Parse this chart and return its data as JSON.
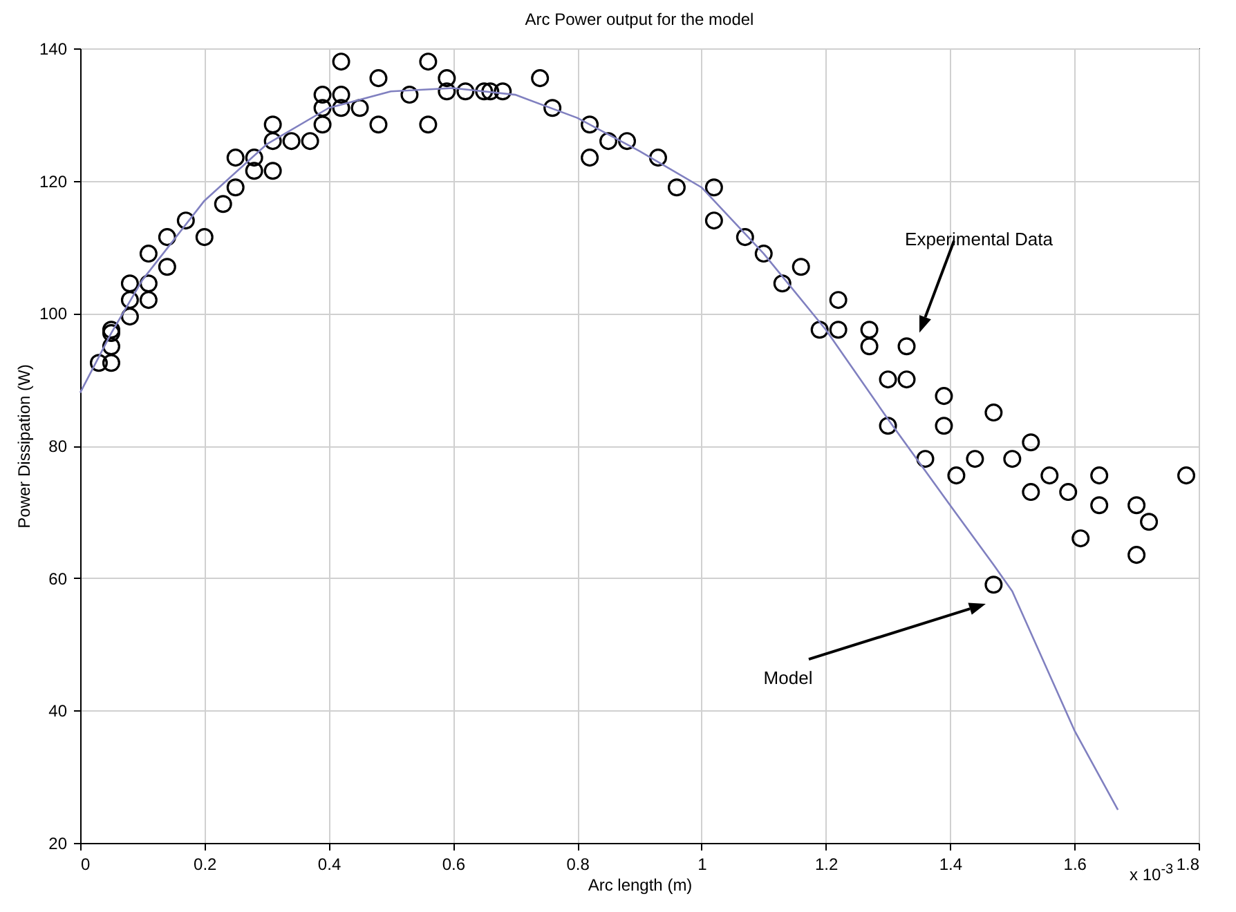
{
  "chart_data": {
    "type": "scatter",
    "title": "Arc Power output for the model",
    "xlabel": "Arc length (m)",
    "ylabel": "Power Dissipation (W)",
    "xlim": [
      0,
      1.8
    ],
    "xticks": [
      0,
      0.2,
      0.4,
      0.6,
      0.8,
      1,
      1.2,
      1.4,
      1.6,
      1.8
    ],
    "ylim": [
      20,
      140
    ],
    "yticks": [
      20,
      40,
      60,
      80,
      100,
      120,
      140
    ],
    "grid": true,
    "series": [
      {
        "marker": "circle",
        "color": "#000000",
        "x": [
          0.03,
          0.05,
          0.05,
          0.05,
          0.05,
          0.08,
          0.08,
          0.08,
          0.11,
          0.11,
          0.11,
          0.14,
          0.14,
          0.17,
          0.2,
          0.23,
          0.25,
          0.25,
          0.28,
          0.28,
          0.31,
          0.31,
          0.31,
          0.34,
          0.37,
          0.39,
          0.39,
          0.39,
          0.42,
          0.42,
          0.42,
          0.45,
          0.48,
          0.48,
          0.53,
          0.56,
          0.56,
          0.59,
          0.59,
          0.62,
          0.65,
          0.66,
          0.68,
          0.74,
          0.76,
          0.82,
          0.82,
          0.85,
          0.88,
          0.93,
          0.96,
          1.02,
          1.02,
          1.07,
          1.1,
          1.13,
          1.16,
          1.19,
          1.22,
          1.22,
          1.27,
          1.27,
          1.3,
          1.3,
          1.33,
          1.33,
          1.36,
          1.39,
          1.39,
          1.41,
          1.44,
          1.47,
          1.47,
          1.5,
          1.53,
          1.53,
          1.56,
          1.59,
          1.61,
          1.64,
          1.64,
          1.7,
          1.7,
          1.72,
          1.78
        ],
        "values": [
          92.5,
          97,
          95,
          92.5,
          97.5,
          99.5,
          102,
          104.5,
          102,
          104.5,
          109,
          107,
          111.5,
          114,
          111.5,
          116.5,
          119,
          123.5,
          121.5,
          123.5,
          121.5,
          126,
          128.5,
          126,
          126,
          128.5,
          131,
          133,
          131,
          133,
          138,
          131,
          128.5,
          135.5,
          133,
          128.5,
          138,
          133.5,
          135.5,
          133.5,
          133.5,
          133.5,
          133.5,
          135.5,
          131,
          128.5,
          123.5,
          126,
          126,
          123.5,
          119,
          119,
          114,
          111.5,
          109,
          104.5,
          107,
          97.5,
          97.5,
          102,
          97.5,
          95,
          90,
          83,
          95,
          90,
          78,
          83,
          87.5,
          75.5,
          78,
          85,
          59,
          78,
          80.5,
          73,
          75.5,
          73,
          66,
          75.5,
          71,
          71,
          63.5,
          68.5,
          75.5
        ]
      },
      {
        "type": "line",
        "color": "#8080c0",
        "x": [
          0,
          0.05,
          0.1,
          0.2,
          0.3,
          0.4,
          0.5,
          0.6,
          0.7,
          0.8,
          0.9,
          1.0,
          1.1,
          1.2,
          1.3,
          1.4,
          1.47,
          1.5,
          1.6,
          1.67
        ],
        "values": [
          88,
          97,
          105,
          117,
          125.5,
          131,
          133.5,
          134,
          133,
          129.5,
          124.5,
          119,
          109,
          97.5,
          84,
          71,
          62,
          58,
          37,
          25
        ]
      }
    ],
    "annotations": [
      "Experimental Data",
      "Model",
      "x 10$^{-3}$"
    ]
  }
}
